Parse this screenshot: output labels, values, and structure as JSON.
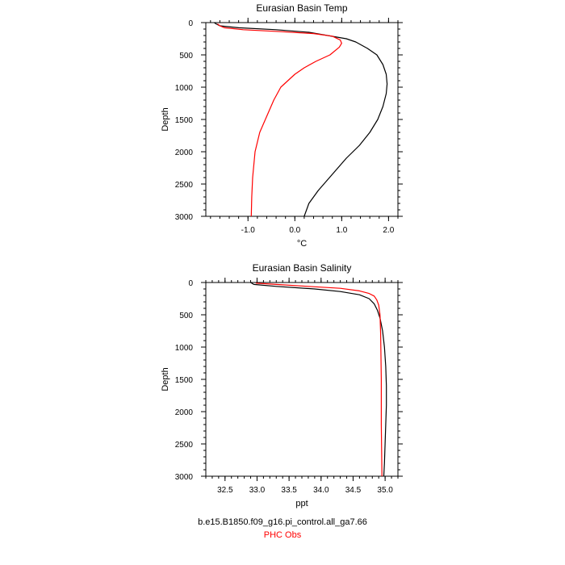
{
  "chart_data": [
    {
      "type": "line",
      "title": "Eurasian Basin Temp",
      "xlabel": "°C",
      "ylabel": "Depth",
      "xlim": [
        -1.9,
        2.2
      ],
      "ylim": [
        3000,
        0
      ],
      "x_ticks": [
        -1.0,
        0.0,
        1.0,
        2.0
      ],
      "x_tick_labels": [
        "-1.0",
        "0.0",
        "1.0",
        "2.0"
      ],
      "y_ticks": [
        0,
        500,
        1000,
        1500,
        2000,
        2500,
        3000
      ],
      "y_tick_labels": [
        "0",
        "500",
        "1000",
        "1500",
        "2000",
        "2500",
        "3000"
      ],
      "grid": false,
      "series": [
        {
          "name": "b.e15.B1850.f09_g16.pi_control.all_ga7.66",
          "color": "#000000",
          "points": [
            [
              -1.72,
              0
            ],
            [
              -1.68,
              20
            ],
            [
              -1.6,
              50
            ],
            [
              -1.2,
              80
            ],
            [
              -0.4,
              110
            ],
            [
              0.3,
              150
            ],
            [
              0.7,
              200
            ],
            [
              1.1,
              250
            ],
            [
              1.3,
              300
            ],
            [
              1.55,
              400
            ],
            [
              1.75,
              500
            ],
            [
              1.88,
              650
            ],
            [
              1.95,
              800
            ],
            [
              1.97,
              950
            ],
            [
              1.95,
              1100
            ],
            [
              1.88,
              1300
            ],
            [
              1.77,
              1500
            ],
            [
              1.6,
              1700
            ],
            [
              1.38,
              1900
            ],
            [
              1.1,
              2100
            ],
            [
              0.8,
              2350
            ],
            [
              0.5,
              2600
            ],
            [
              0.3,
              2800
            ],
            [
              0.2,
              3000
            ]
          ]
        },
        {
          "name": "PHC Obs",
          "color": "#ff0000",
          "points": [
            [
              -1.65,
              20
            ],
            [
              -1.6,
              50
            ],
            [
              -1.5,
              80
            ],
            [
              -1.1,
              110
            ],
            [
              -0.3,
              140
            ],
            [
              0.4,
              170
            ],
            [
              0.8,
              210
            ],
            [
              0.97,
              270
            ],
            [
              1.0,
              320
            ],
            [
              0.95,
              380
            ],
            [
              0.75,
              500
            ],
            [
              0.45,
              600
            ],
            [
              0.2,
              700
            ],
            [
              0.0,
              800
            ],
            [
              -0.15,
              900
            ],
            [
              -0.3,
              1000
            ],
            [
              -0.45,
              1200
            ],
            [
              -0.6,
              1450
            ],
            [
              -0.75,
              1700
            ],
            [
              -0.85,
              2000
            ],
            [
              -0.9,
              2400
            ],
            [
              -0.92,
              2700
            ],
            [
              -0.93,
              3000
            ]
          ]
        }
      ]
    },
    {
      "type": "line",
      "title": "Eurasian Basin Salinity",
      "xlabel": "ppt",
      "ylabel": "Depth",
      "xlim": [
        32.2,
        35.2
      ],
      "ylim": [
        3000,
        0
      ],
      "x_ticks": [
        32.5,
        33.0,
        33.5,
        34.0,
        34.5,
        35.0
      ],
      "x_tick_labels": [
        "32.5",
        "33.0",
        "33.5",
        "34.0",
        "34.5",
        "35.0"
      ],
      "y_ticks": [
        0,
        500,
        1000,
        1500,
        2000,
        2500,
        3000
      ],
      "y_tick_labels": [
        "0",
        "500",
        "1000",
        "1500",
        "2000",
        "2500",
        "3000"
      ],
      "grid": false,
      "series": [
        {
          "name": "b.e15.B1850.f09_g16.pi_control.all_ga7.66",
          "color": "#000000",
          "points": [
            [
              32.9,
              0
            ],
            [
              32.95,
              30
            ],
            [
              33.3,
              60
            ],
            [
              33.9,
              100
            ],
            [
              34.3,
              140
            ],
            [
              34.6,
              190
            ],
            [
              34.75,
              250
            ],
            [
              34.83,
              330
            ],
            [
              34.88,
              430
            ],
            [
              34.92,
              550
            ],
            [
              34.96,
              750
            ],
            [
              34.99,
              1000
            ],
            [
              35.01,
              1300
            ],
            [
              35.02,
              1600
            ],
            [
              35.02,
              1900
            ],
            [
              35.01,
              2200
            ],
            [
              35.0,
              2500
            ],
            [
              34.99,
              2800
            ],
            [
              34.98,
              3000
            ]
          ]
        },
        {
          "name": "PHC Obs",
          "color": "#ff0000",
          "points": [
            [
              32.98,
              10
            ],
            [
              33.3,
              30
            ],
            [
              33.8,
              60
            ],
            [
              34.3,
              90
            ],
            [
              34.6,
              130
            ],
            [
              34.75,
              170
            ],
            [
              34.83,
              210
            ],
            [
              34.87,
              270
            ],
            [
              34.9,
              350
            ],
            [
              34.92,
              500
            ],
            [
              34.93,
              800
            ],
            [
              34.94,
              1500
            ],
            [
              34.94,
              2200
            ],
            [
              34.95,
              3000
            ]
          ]
        }
      ]
    }
  ],
  "legend": [
    {
      "text": "b.e15.B1850.f09_g16.pi_control.all_ga7.66",
      "color": "#000000"
    },
    {
      "text": "PHC Obs",
      "color": "#ff0000"
    }
  ]
}
